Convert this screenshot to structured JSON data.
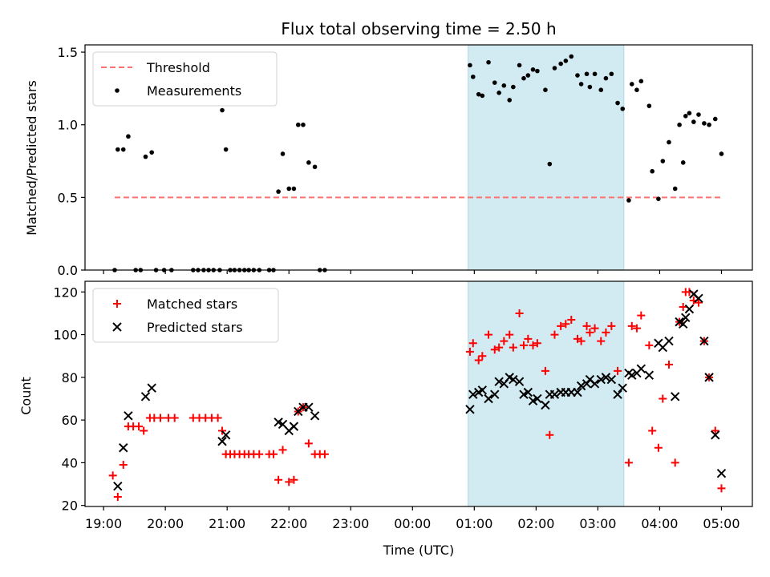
{
  "chart_data": [
    {
      "type": "scatter",
      "title": "Flux total observing time = 2.50 h",
      "xlabel": "",
      "ylabel": "Matched/Predicted stars",
      "ylim": [
        0,
        1.55
      ],
      "yticks": [
        0.0,
        0.5,
        1.0,
        1.5
      ],
      "ytick_labels": [
        "0.0",
        "0.5",
        "1.0",
        "1.5"
      ],
      "xlim": [
        18.7,
        29.5
      ],
      "xticks": [
        19,
        20,
        21,
        22,
        23,
        24,
        25,
        26,
        27,
        28,
        29
      ],
      "shaded_span": [
        24.9,
        27.42
      ],
      "shade_color": "#add8e6",
      "threshold": {
        "name": "Threshold",
        "value": 0.5,
        "x_range": [
          19.18,
          29.0
        ],
        "color": "#ff7070"
      },
      "legend": {
        "position": "upper-left",
        "entries": [
          "Threshold",
          "Measurements"
        ]
      },
      "series": [
        {
          "name": "Measurements",
          "color": "#000000",
          "points": [
            [
              19.18,
              0.0
            ],
            [
              19.23,
              0.83
            ],
            [
              19.32,
              0.83
            ],
            [
              19.4,
              0.92
            ],
            [
              19.52,
              0.0
            ],
            [
              19.6,
              0.0
            ],
            [
              19.68,
              0.78
            ],
            [
              19.78,
              0.81
            ],
            [
              19.85,
              0.0
            ],
            [
              19.98,
              0.0
            ],
            [
              20.1,
              0.0
            ],
            [
              20.45,
              0.0
            ],
            [
              20.53,
              0.0
            ],
            [
              20.62,
              0.0
            ],
            [
              20.7,
              0.0
            ],
            [
              20.78,
              0.0
            ],
            [
              20.88,
              0.0
            ],
            [
              20.92,
              1.1
            ],
            [
              20.98,
              0.83
            ],
            [
              21.05,
              0.0
            ],
            [
              21.12,
              0.0
            ],
            [
              21.2,
              0.0
            ],
            [
              21.28,
              0.0
            ],
            [
              21.35,
              0.0
            ],
            [
              21.43,
              0.0
            ],
            [
              21.52,
              0.0
            ],
            [
              21.68,
              0.0
            ],
            [
              21.75,
              0.0
            ],
            [
              21.83,
              0.54
            ],
            [
              21.9,
              0.8
            ],
            [
              22.0,
              0.56
            ],
            [
              22.08,
              0.56
            ],
            [
              22.15,
              1.0
            ],
            [
              22.23,
              1.0
            ],
            [
              22.32,
              0.74
            ],
            [
              22.42,
              0.71
            ],
            [
              22.5,
              0.0
            ],
            [
              22.58,
              0.0
            ],
            [
              24.93,
              1.41
            ],
            [
              24.98,
              1.33
            ],
            [
              25.07,
              1.21
            ],
            [
              25.13,
              1.2
            ],
            [
              25.23,
              1.43
            ],
            [
              25.33,
              1.29
            ],
            [
              25.4,
              1.22
            ],
            [
              25.48,
              1.27
            ],
            [
              25.57,
              1.17
            ],
            [
              25.63,
              1.26
            ],
            [
              25.73,
              1.41
            ],
            [
              25.8,
              1.32
            ],
            [
              25.87,
              1.34
            ],
            [
              25.95,
              1.38
            ],
            [
              26.02,
              1.37
            ],
            [
              26.15,
              1.24
            ],
            [
              26.22,
              0.73
            ],
            [
              26.3,
              1.39
            ],
            [
              26.4,
              1.42
            ],
            [
              26.48,
              1.44
            ],
            [
              26.57,
              1.47
            ],
            [
              26.67,
              1.34
            ],
            [
              26.73,
              1.28
            ],
            [
              26.82,
              1.35
            ],
            [
              26.87,
              1.26
            ],
            [
              26.95,
              1.35
            ],
            [
              27.05,
              1.24
            ],
            [
              27.13,
              1.32
            ],
            [
              27.22,
              1.35
            ],
            [
              27.32,
              1.15
            ],
            [
              27.4,
              1.11
            ],
            [
              27.5,
              0.48
            ],
            [
              27.55,
              1.28
            ],
            [
              27.63,
              1.24
            ],
            [
              27.7,
              1.3
            ],
            [
              27.83,
              1.13
            ],
            [
              27.88,
              0.68
            ],
            [
              27.98,
              0.49
            ],
            [
              28.05,
              0.75
            ],
            [
              28.15,
              0.88
            ],
            [
              28.25,
              0.56
            ],
            [
              28.32,
              1.0
            ],
            [
              28.38,
              0.74
            ],
            [
              28.42,
              1.06
            ],
            [
              28.48,
              1.08
            ],
            [
              28.55,
              1.02
            ],
            [
              28.63,
              1.07
            ],
            [
              28.72,
              1.01
            ],
            [
              28.8,
              1.0
            ],
            [
              28.9,
              1.04
            ],
            [
              29.0,
              0.8
            ]
          ]
        }
      ]
    },
    {
      "type": "scatter",
      "title": "",
      "xlabel": "Time (UTC)",
      "ylabel": "Count",
      "ylim": [
        19.5,
        125
      ],
      "yticks": [
        20,
        40,
        60,
        80,
        100,
        120
      ],
      "ytick_labels": [
        "20",
        "40",
        "60",
        "80",
        "100",
        "120"
      ],
      "xlim": [
        18.7,
        29.5
      ],
      "xticks": [
        19,
        20,
        21,
        22,
        23,
        24,
        25,
        26,
        27,
        28,
        29
      ],
      "xtick_labels": [
        "19:00",
        "20:00",
        "21:00",
        "22:00",
        "23:00",
        "00:00",
        "01:00",
        "02:00",
        "03:00",
        "04:00",
        "05:00"
      ],
      "shaded_span": [
        24.9,
        27.42
      ],
      "shade_color": "#add8e6",
      "legend": {
        "position": "upper-left",
        "entries": [
          "Matched stars",
          "Predicted stars"
        ]
      },
      "series": [
        {
          "name": "Matched stars",
          "marker": "plus",
          "color": "#ff0000",
          "points": [
            [
              19.15,
              34
            ],
            [
              19.23,
              24
            ],
            [
              19.32,
              39
            ],
            [
              19.4,
              57
            ],
            [
              19.48,
              57
            ],
            [
              19.57,
              57
            ],
            [
              19.65,
              55
            ],
            [
              19.75,
              61
            ],
            [
              19.82,
              61
            ],
            [
              19.92,
              61
            ],
            [
              20.05,
              61
            ],
            [
              20.15,
              61
            ],
            [
              20.45,
              61
            ],
            [
              20.55,
              61
            ],
            [
              20.65,
              61
            ],
            [
              20.75,
              61
            ],
            [
              20.85,
              61
            ],
            [
              20.92,
              55
            ],
            [
              20.98,
              44
            ],
            [
              21.05,
              44
            ],
            [
              21.12,
              44
            ],
            [
              21.2,
              44
            ],
            [
              21.28,
              44
            ],
            [
              21.35,
              44
            ],
            [
              21.43,
              44
            ],
            [
              21.52,
              44
            ],
            [
              21.68,
              44
            ],
            [
              21.75,
              44
            ],
            [
              21.83,
              32
            ],
            [
              21.9,
              46
            ],
            [
              22.0,
              31
            ],
            [
              22.08,
              32
            ],
            [
              22.15,
              64
            ],
            [
              22.23,
              66
            ],
            [
              22.32,
              49
            ],
            [
              22.42,
              44
            ],
            [
              22.5,
              44
            ],
            [
              22.58,
              44
            ],
            [
              24.93,
              92
            ],
            [
              24.98,
              96
            ],
            [
              25.07,
              88
            ],
            [
              25.13,
              90
            ],
            [
              25.23,
              100
            ],
            [
              25.33,
              93
            ],
            [
              25.4,
              94
            ],
            [
              25.48,
              97
            ],
            [
              25.57,
              100
            ],
            [
              25.63,
              94
            ],
            [
              25.73,
              110
            ],
            [
              25.8,
              95
            ],
            [
              25.87,
              98
            ],
            [
              25.95,
              95
            ],
            [
              26.02,
              96
            ],
            [
              26.15,
              83
            ],
            [
              26.22,
              53
            ],
            [
              26.3,
              100
            ],
            [
              26.4,
              104
            ],
            [
              26.48,
              105
            ],
            [
              26.57,
              107
            ],
            [
              26.67,
              98
            ],
            [
              26.73,
              97
            ],
            [
              26.82,
              104
            ],
            [
              26.87,
              101
            ],
            [
              26.95,
              103
            ],
            [
              27.05,
              97
            ],
            [
              27.13,
              101
            ],
            [
              27.22,
              104
            ],
            [
              27.32,
              83
            ],
            [
              27.5,
              40
            ],
            [
              27.55,
              104
            ],
            [
              27.63,
              103
            ],
            [
              27.7,
              109
            ],
            [
              27.83,
              95
            ],
            [
              27.88,
              55
            ],
            [
              27.98,
              47
            ],
            [
              28.05,
              70
            ],
            [
              28.15,
              86
            ],
            [
              28.25,
              40
            ],
            [
              28.32,
              106
            ],
            [
              28.38,
              113
            ],
            [
              28.42,
              120
            ],
            [
              28.48,
              120
            ],
            [
              28.55,
              116
            ],
            [
              28.63,
              115
            ],
            [
              28.72,
              97
            ],
            [
              28.8,
              80
            ],
            [
              28.9,
              55
            ],
            [
              29.0,
              28
            ]
          ]
        },
        {
          "name": "Predicted stars",
          "marker": "x",
          "color": "#000000",
          "points": [
            [
              19.23,
              29
            ],
            [
              19.32,
              47
            ],
            [
              19.4,
              62
            ],
            [
              19.68,
              71
            ],
            [
              19.78,
              75
            ],
            [
              20.92,
              50
            ],
            [
              20.98,
              53
            ],
            [
              21.83,
              59
            ],
            [
              21.9,
              58
            ],
            [
              22.0,
              55
            ],
            [
              22.08,
              57
            ],
            [
              22.15,
              64
            ],
            [
              22.23,
              66
            ],
            [
              22.32,
              66
            ],
            [
              22.42,
              62
            ],
            [
              24.93,
              65
            ],
            [
              24.98,
              72
            ],
            [
              25.07,
              73
            ],
            [
              25.13,
              74
            ],
            [
              25.23,
              70
            ],
            [
              25.33,
              72
            ],
            [
              25.4,
              78
            ],
            [
              25.48,
              77
            ],
            [
              25.57,
              80
            ],
            [
              25.63,
              79
            ],
            [
              25.73,
              78
            ],
            [
              25.8,
              72
            ],
            [
              25.87,
              73
            ],
            [
              25.95,
              69
            ],
            [
              26.02,
              70
            ],
            [
              26.15,
              67
            ],
            [
              26.22,
              72
            ],
            [
              26.3,
              72
            ],
            [
              26.4,
              73
            ],
            [
              26.48,
              73
            ],
            [
              26.57,
              73
            ],
            [
              26.67,
              73
            ],
            [
              26.73,
              76
            ],
            [
              26.82,
              77
            ],
            [
              26.87,
              79
            ],
            [
              26.95,
              77
            ],
            [
              27.05,
              79
            ],
            [
              27.13,
              80
            ],
            [
              27.22,
              79
            ],
            [
              27.32,
              72
            ],
            [
              27.4,
              75
            ],
            [
              27.5,
              82
            ],
            [
              27.55,
              81
            ],
            [
              27.63,
              82
            ],
            [
              27.7,
              84
            ],
            [
              27.83,
              81
            ],
            [
              27.98,
              96
            ],
            [
              28.05,
              94
            ],
            [
              28.15,
              97
            ],
            [
              28.25,
              71
            ],
            [
              28.32,
              106
            ],
            [
              28.38,
              105
            ],
            [
              28.42,
              108
            ],
            [
              28.48,
              112
            ],
            [
              28.55,
              119
            ],
            [
              28.63,
              117
            ],
            [
              28.72,
              97
            ],
            [
              28.8,
              80
            ],
            [
              28.9,
              53
            ],
            [
              29.0,
              35
            ]
          ]
        }
      ]
    }
  ]
}
